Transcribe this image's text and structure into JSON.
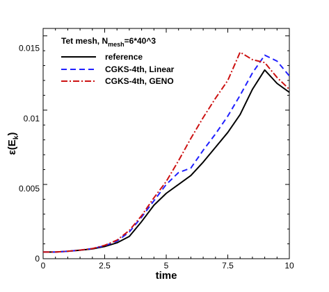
{
  "chart_data": {
    "type": "line",
    "title": "Tet mesh, N",
    "title_sub": "mesh",
    "title_suffix": "=6*40^3",
    "xlabel": "time",
    "ylabel_main": "ε(E",
    "ylabel_sub": "k",
    "ylabel_close": ")",
    "xlim": [
      0,
      10
    ],
    "ylim": [
      0,
      0.0155
    ],
    "xticks": [
      0,
      2.5,
      5,
      7.5,
      10
    ],
    "xtick_labels": [
      "0",
      "2.5",
      "5",
      "7.5",
      "10"
    ],
    "yticks": [
      0,
      0.005,
      0.01,
      0.015
    ],
    "ytick_labels": [
      "0",
      "0.005",
      "0.01",
      "0.015"
    ],
    "legend_position": "top-left",
    "series": [
      {
        "name": "reference",
        "color": "#000000",
        "dash": "solid",
        "x": [
          0,
          0.5,
          1,
          1.5,
          2,
          2.5,
          3,
          3.5,
          4,
          4.5,
          5,
          5.5,
          6,
          6.5,
          7,
          7.5,
          8,
          8.5,
          9,
          9.5,
          10
        ],
        "y": [
          0.00045,
          0.00045,
          0.0005,
          0.00057,
          0.00066,
          0.00082,
          0.00107,
          0.0015,
          0.0025,
          0.0036,
          0.0044,
          0.005,
          0.0056,
          0.0065,
          0.0075,
          0.0085,
          0.0097,
          0.0114,
          0.0127,
          0.0118,
          0.0112
        ]
      },
      {
        "name": "CGKS-4th, Linear",
        "color": "#2020ff",
        "dash": "dashed",
        "x": [
          0,
          0.5,
          1,
          1.5,
          2,
          2.5,
          3,
          3.5,
          4,
          4.5,
          5,
          5.5,
          6,
          6.5,
          7,
          7.5,
          8,
          8.5,
          9,
          9.5,
          10
        ],
        "y": [
          0.00045,
          0.00045,
          0.0005,
          0.00058,
          0.00068,
          0.00087,
          0.00118,
          0.0018,
          0.0028,
          0.0039,
          0.005,
          0.0058,
          0.0061,
          0.0073,
          0.0084,
          0.0096,
          0.011,
          0.0125,
          0.0137,
          0.0133,
          0.0123
        ]
      },
      {
        "name": "CGKS-4th, GENO",
        "color": "#cc1111",
        "dash": "dashdot",
        "x": [
          0,
          0.5,
          1,
          1.5,
          2,
          2.5,
          3,
          3.5,
          4,
          4.5,
          5,
          5.5,
          6,
          6.5,
          7,
          7.5,
          8,
          8.5,
          9,
          9.5,
          10
        ],
        "y": [
          0.00045,
          0.00045,
          0.0005,
          0.00058,
          0.00068,
          0.0009,
          0.00125,
          0.0019,
          0.0029,
          0.0041,
          0.0052,
          0.0066,
          0.0081,
          0.0095,
          0.0108,
          0.012,
          0.0139,
          0.0134,
          0.0132,
          0.0122,
          0.0114
        ]
      }
    ]
  }
}
